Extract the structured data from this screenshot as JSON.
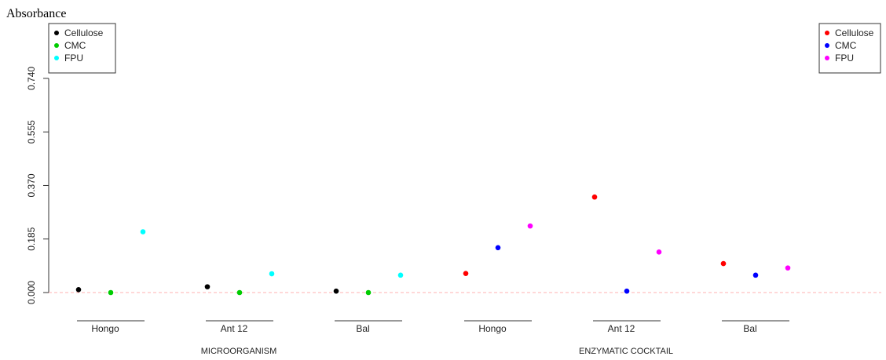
{
  "chart_data": {
    "type": "scatter",
    "ylabel": "Absorbance",
    "yticks": [
      "0.000",
      "0.185",
      "0.370",
      "0.555",
      "0.740"
    ],
    "ytick_values": [
      0,
      0.185,
      0.37,
      0.555,
      0.74
    ],
    "ylim": [
      -0.02,
      0.86
    ],
    "reference_line": {
      "y": 0,
      "color": "#ffb0b0",
      "style": "dashed"
    },
    "groups": [
      {
        "label": "MICROORGANISM",
        "legend_position": "top-left",
        "categories": [
          "Hongo",
          "Ant 12",
          "Bal"
        ],
        "series": [
          {
            "name": "Cellulose",
            "color": "#000000",
            "values": [
              0.01,
              0.02,
              0.005
            ]
          },
          {
            "name": "CMC",
            "color": "#00cc00",
            "values": [
              0.0,
              0.0,
              0.0
            ]
          },
          {
            "name": "FPU",
            "color": "#00ffff",
            "values": [
              0.21,
              0.065,
              0.06
            ]
          }
        ]
      },
      {
        "label": "ENZYMATIC COCKTAIL",
        "legend_position": "top-right",
        "categories": [
          "Hongo",
          "Ant 12",
          "Bal"
        ],
        "series": [
          {
            "name": "Cellulose",
            "color": "#ff0000",
            "values": [
              0.066,
              0.33,
              0.1
            ]
          },
          {
            "name": "CMC",
            "color": "#0000ff",
            "values": [
              0.155,
              0.005,
              0.06
            ]
          },
          {
            "name": "FPU",
            "color": "#ff00ff",
            "values": [
              0.23,
              0.14,
              0.085
            ]
          }
        ]
      }
    ]
  }
}
